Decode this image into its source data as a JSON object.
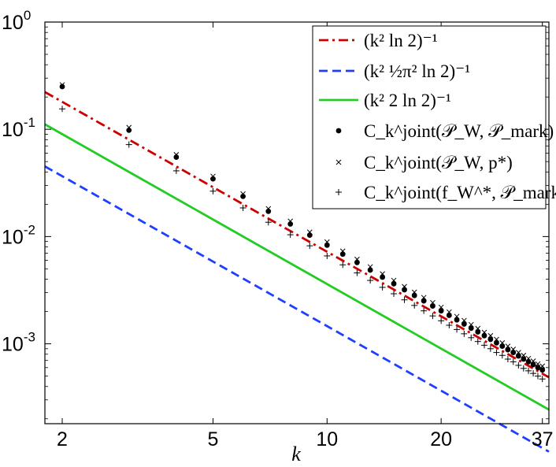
{
  "chart_data": {
    "type": "scatter",
    "xlabel": "k",
    "x_scale": "log",
    "y_scale": "log",
    "xlim": [
      1.8,
      38.5
    ],
    "ylim": [
      0.00018,
      1
    ],
    "x_ticks": [
      {
        "value": 2,
        "label": "2"
      },
      {
        "value": 5,
        "label": "5"
      },
      {
        "value": 10,
        "label": "10"
      },
      {
        "value": 20,
        "label": "20"
      },
      {
        "value": 37,
        "label": "37"
      }
    ],
    "y_ticks": [
      {
        "value": 1,
        "base": "10",
        "exp": "0"
      },
      {
        "value": 0.1,
        "base": "10",
        "exp": "-1"
      },
      {
        "value": 0.01,
        "base": "10",
        "exp": "-2"
      },
      {
        "value": 0.001,
        "base": "10",
        "exp": "-3"
      }
    ],
    "legend_position": "top-right",
    "series": [
      {
        "name": "(k² ln 2)⁻¹",
        "kind": "line",
        "style": "dashdot",
        "color": "#cc0000",
        "formula_const": 1.386294,
        "x_range": [
          1.8,
          38.5
        ]
      },
      {
        "name": "(k² ½π² ln 2)⁻¹",
        "kind": "line",
        "style": "dashed",
        "color": "#1f3fff",
        "formula_const": 6.84,
        "x_range": [
          1.8,
          38.5
        ]
      },
      {
        "name": "(k² 2 ln 2)⁻¹",
        "kind": "line",
        "style": "solid",
        "color": "#22cc22",
        "formula_const": 2.772589,
        "x_range": [
          1.8,
          38.5
        ]
      },
      {
        "name": "C_k^joint(𝒫_W, 𝒫_mark)",
        "kind": "points",
        "marker": "dot",
        "color": "#000000",
        "x": [
          2,
          3,
          4,
          5,
          6,
          7,
          8,
          9,
          10,
          11,
          12,
          13,
          14,
          15,
          16,
          17,
          18,
          19,
          20,
          21,
          22,
          23,
          24,
          25,
          26,
          27,
          28,
          29,
          30,
          31,
          32,
          33,
          34,
          35,
          36,
          37
        ],
        "values": [
          0.25,
          0.098,
          0.055,
          0.0345,
          0.0237,
          0.0172,
          0.0131,
          0.0103,
          0.0083,
          0.00685,
          0.00573,
          0.00487,
          0.00418,
          0.00363,
          0.00319,
          0.00282,
          0.00251,
          0.00225,
          0.00203,
          0.00184,
          0.00167,
          0.00153,
          0.0014,
          0.00129,
          0.00119,
          0.0011,
          0.00102,
          0.00095,
          0.00088,
          0.00083,
          0.00077,
          0.00072,
          0.00068,
          0.00064,
          0.0006,
          0.00057
        ]
      },
      {
        "name": "C_k^joint(𝒫_W, p*)",
        "kind": "points",
        "marker": "x",
        "color": "#000000",
        "x": [
          2,
          3,
          4,
          5,
          6,
          7,
          8,
          9,
          10,
          11,
          12,
          13,
          14,
          15,
          16,
          17,
          18,
          19,
          20,
          21,
          22,
          23,
          24,
          25,
          26,
          27,
          28,
          29,
          30,
          31,
          32,
          33,
          34,
          35,
          36,
          37
        ],
        "values": [
          0.26,
          0.104,
          0.058,
          0.0365,
          0.025,
          0.0182,
          0.0139,
          0.011,
          0.0089,
          0.00732,
          0.00614,
          0.00522,
          0.00449,
          0.0039,
          0.00342,
          0.00303,
          0.0027,
          0.00242,
          0.00219,
          0.00198,
          0.0018,
          0.00165,
          0.00151,
          0.00139,
          0.00128,
          0.00119,
          0.0011,
          0.00102,
          0.00095,
          0.00089,
          0.00083,
          0.00078,
          0.00073,
          0.00069,
          0.00065,
          0.00062
        ]
      },
      {
        "name": "C_k^joint(f_W^*, 𝒫_mark)",
        "kind": "points",
        "marker": "plus",
        "color": "#000000",
        "x": [
          2,
          3,
          4,
          5,
          6,
          7,
          8,
          9,
          10,
          11,
          12,
          13,
          14,
          15,
          16,
          17,
          18,
          19,
          20,
          21,
          22,
          23,
          24,
          25,
          26,
          27,
          28,
          29,
          30,
          31,
          32,
          33,
          34,
          35,
          36,
          37
        ],
        "values": [
          0.155,
          0.072,
          0.041,
          0.0265,
          0.0185,
          0.0136,
          0.0104,
          0.0082,
          0.0066,
          0.00545,
          0.00458,
          0.0039,
          0.00336,
          0.00293,
          0.00257,
          0.00228,
          0.00203,
          0.00182,
          0.00164,
          0.00149,
          0.00136,
          0.00124,
          0.00114,
          0.00105,
          0.00097,
          0.0009,
          0.00083,
          0.00078,
          0.00072,
          0.00068,
          0.00063,
          0.00059,
          0.00056,
          0.00053,
          0.0005,
          0.00047
        ]
      }
    ]
  }
}
